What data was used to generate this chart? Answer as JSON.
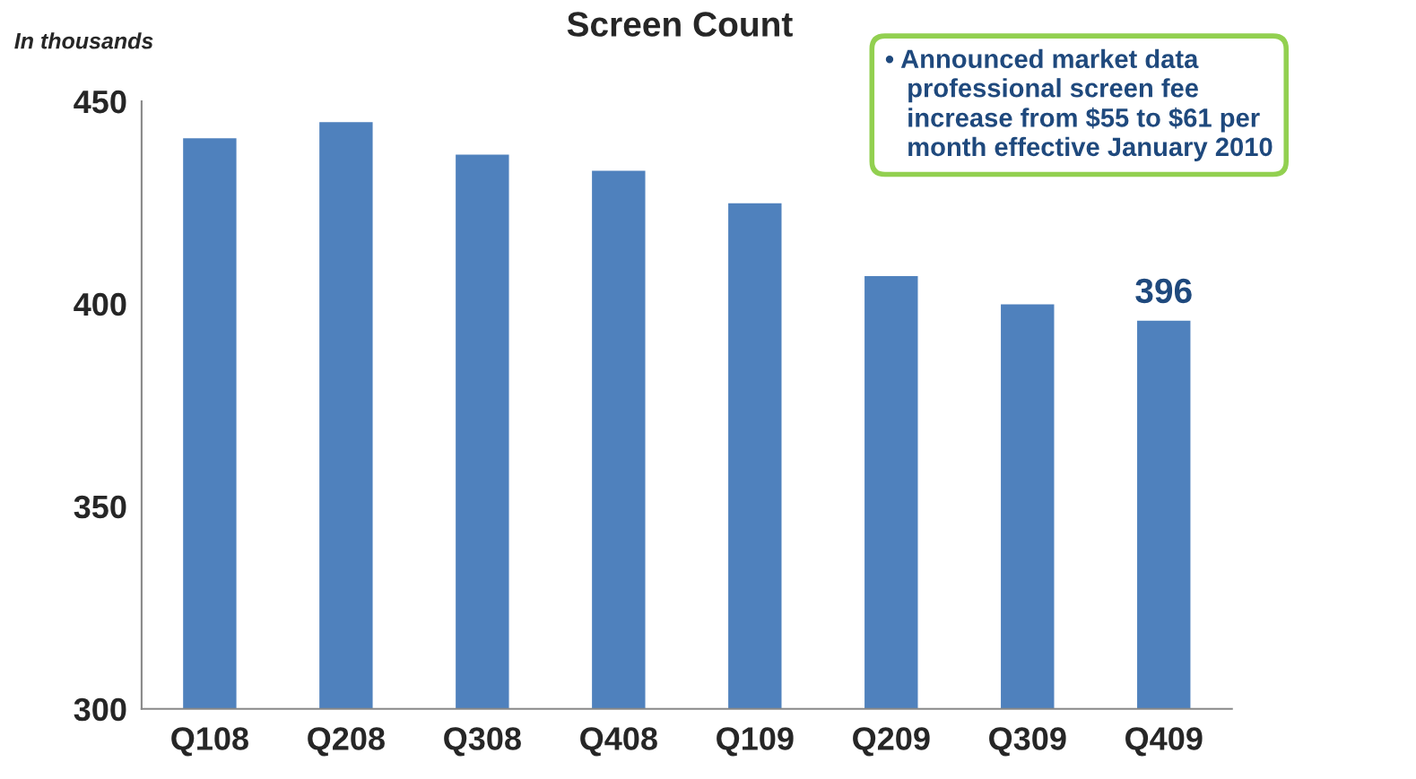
{
  "chart_data": {
    "type": "bar",
    "title": "Screen Count",
    "ylabel": "In thousands",
    "categories": [
      "Q108",
      "Q208",
      "Q308",
      "Q408",
      "Q109",
      "Q209",
      "Q309",
      "Q409"
    ],
    "values": [
      441,
      445,
      437,
      433,
      425,
      407,
      400,
      396
    ],
    "value_labels": [
      null,
      null,
      null,
      null,
      null,
      null,
      null,
      "396"
    ],
    "color": "#4f81bd",
    "ylim": [
      300,
      450
    ],
    "yticks": [
      300,
      350,
      400,
      450
    ],
    "grid": false,
    "annotations": [
      "• Announced market data\n   professional screen fee\n   increase from $55 to $61 per\n   month effective January 2010"
    ]
  }
}
